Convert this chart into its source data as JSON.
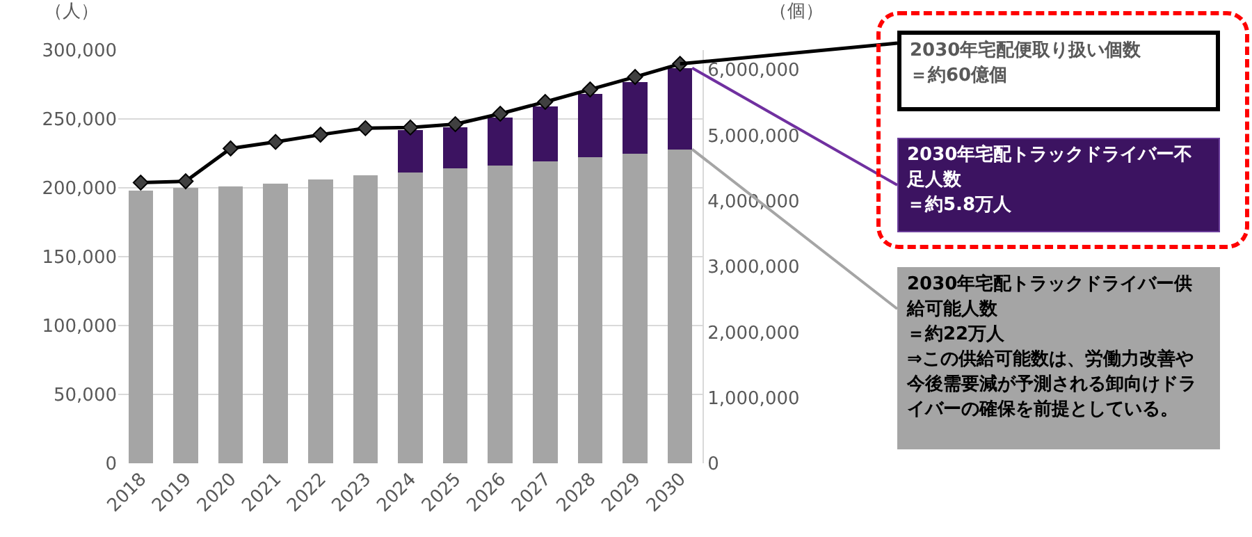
{
  "chart_data": {
    "type": "bar",
    "stacked": true,
    "ylabel": "（人）",
    "y2label": "（個）",
    "categories": [
      "2018",
      "2019",
      "2020",
      "2021",
      "2022",
      "2023",
      "2024",
      "2025",
      "2026",
      "2027",
      "2028",
      "2029",
      "2030"
    ],
    "series": [
      {
        "color": "#a5a5a5",
        "values": [
          198000,
          200000,
          201000,
          203000,
          206000,
          209000,
          211000,
          214000,
          216000,
          219000,
          222000,
          225000,
          228000
        ]
      },
      {
        "color": "#3c1361",
        "values": [
          null,
          null,
          null,
          null,
          null,
          null,
          31000,
          30000,
          35000,
          40000,
          46000,
          52000,
          59000
        ]
      },
      {
        "type": "line",
        "axis": "y2",
        "color": "#000000",
        "marker": "diamond",
        "values": [
          4280000,
          4300000,
          4800000,
          4900000,
          5010000,
          5110000,
          5120000,
          5170000,
          5330000,
          5510000,
          5700000,
          5890000,
          6090000
        ]
      }
    ],
    "ylim": [
      0,
      300000
    ],
    "yticks": [
      0,
      {
        "value": 50000,
        "label": "50,000"
      },
      {
        "value": 100000,
        "label": "100,000"
      },
      {
        "value": 150000,
        "label": "150,000"
      },
      {
        "value": 200000,
        "label": "200,000"
      },
      {
        "value": 250000,
        "label": "250,000"
      },
      {
        "value": 300000,
        "label": "300,000"
      }
    ],
    "y2lim": [
      0,
      6300000
    ],
    "y2ticks": [
      0,
      {
        "value": 1000000,
        "label": "1,000,000"
      },
      {
        "value": 2000000,
        "label": "2,000,000"
      },
      {
        "value": 3000000,
        "label": "3,000,000"
      },
      {
        "value": 4000000,
        "label": "4,000,000"
      },
      {
        "value": 5000000,
        "label": "5,000,000"
      },
      {
        "value": 6000000,
        "label": "6,000,000"
      }
    ],
    "grid": "y",
    "annotations": [
      {
        "text": "2030年宅配便取り扱い個数",
        "x": "2030",
        "y": 290000
      },
      "＝約60億個",
      {
        "text": "2030年宅配トラックドライバー不足人数",
        "x": "2030",
        "y": 287000
      },
      "＝約5.8万人",
      {
        "text": "2030年宅配トラックドライバー供給可能人数",
        "x": "2030",
        "y": 228000
      },
      "＝約22万人",
      "⇒この供給可能数は、労働力改善や今後需要減が予測される卸向けドライバーの確保を前提としている。"
    ]
  }
}
